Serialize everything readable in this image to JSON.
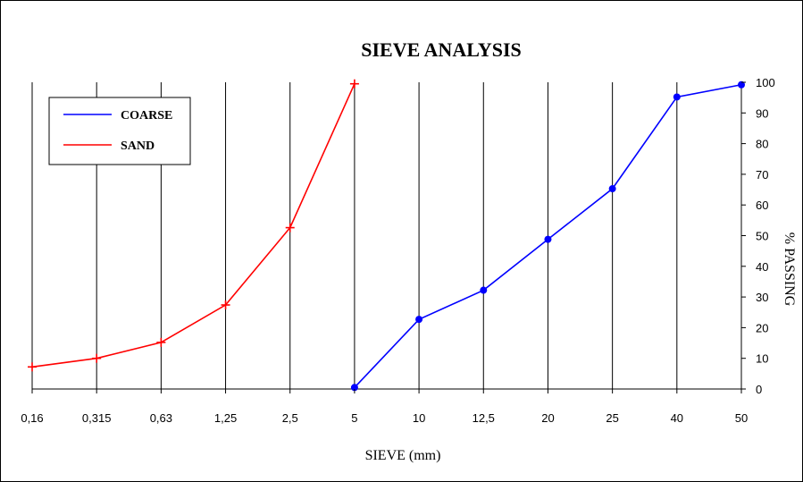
{
  "chart_data": {
    "type": "line",
    "title": "SIEVE ANALYSIS",
    "xlabel": "SIEVE (mm)",
    "ylabel": "% PASSING",
    "categories": [
      "0,16",
      "0,315",
      "0,63",
      "1,25",
      "2,5",
      "5",
      "10",
      "12,5",
      "20",
      "25",
      "40",
      "50"
    ],
    "ylim": [
      0,
      100
    ],
    "yticks": [
      0,
      10,
      20,
      30,
      40,
      50,
      60,
      70,
      80,
      90,
      100
    ],
    "grid": "vertical",
    "legend_position": "top-left",
    "series": [
      {
        "name": "COARSE",
        "color": "#0000ff",
        "marker": "circle",
        "points": [
          {
            "category": "5",
            "value": 0.5
          },
          {
            "category": "10",
            "value": 22.7
          },
          {
            "category": "12,5",
            "value": 32.2
          },
          {
            "category": "20",
            "value": 48.8
          },
          {
            "category": "25",
            "value": 65.3
          },
          {
            "category": "40",
            "value": 95.2
          },
          {
            "category": "50",
            "value": 99.2
          }
        ]
      },
      {
        "name": "SAND",
        "color": "#ff0000",
        "marker": "cross",
        "points": [
          {
            "category": "0,16",
            "value": 7.2
          },
          {
            "category": "0,315",
            "value": 10.0
          },
          {
            "category": "0,63",
            "value": 15.2
          },
          {
            "category": "1,25",
            "value": 27.4
          },
          {
            "category": "2,5",
            "value": 52.6
          },
          {
            "category": "5",
            "value": 99.5
          }
        ]
      }
    ]
  }
}
